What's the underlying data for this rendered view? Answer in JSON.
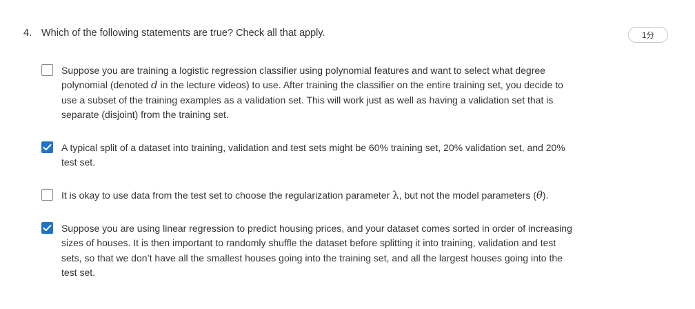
{
  "question": {
    "number": "4.",
    "prompt": "Which of the following statements are true? Check all that apply.",
    "points": "1分"
  },
  "options": [
    {
      "checked": false,
      "text_before": "Suppose you are training a logistic regression classifier using polynomial features and want to select what degree polynomial (denoted ",
      "math": "d",
      "text_after": " in the lecture videos)  to use. After training the classifier on the entire training set, you decide to use a subset of the training examples as a validation set. This will work just as well as having a validation set that is separate (disjoint) from the training set."
    },
    {
      "checked": true,
      "text": "A typical split of a dataset into training, validation and test sets might be 60% training set, 20% validation set, and 20% test set."
    },
    {
      "checked": false,
      "text_before": "It is okay to use data from the test set to choose the regularization parameter ",
      "math": "λ",
      "text_middle": ", but not the model parameters (",
      "math2": "θ",
      "text_after": ")."
    },
    {
      "checked": true,
      "text": "Suppose you are using linear regression to predict housing prices, and your dataset comes sorted in order of increasing sizes of houses.  It is then important to randomly shuffle the dataset before splitting it into training, validation and test sets, so that we don’t have all the smallest houses going into the training set, and all the largest houses going into the test set."
    }
  ],
  "colors": {
    "checkbox_checked": "#1f74c9",
    "checkbox_border": "#8a8a8a",
    "text": "#333333"
  }
}
